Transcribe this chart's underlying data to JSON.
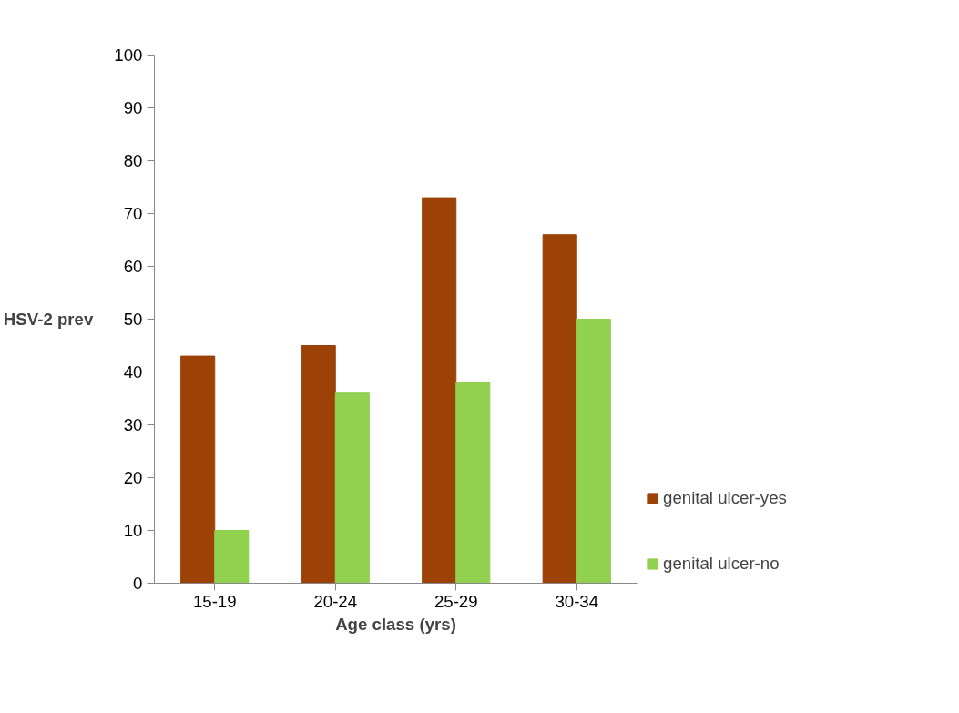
{
  "chart_data": {
    "type": "bar",
    "xlabel": "Age class (yrs)",
    "ylabel": "HSV-2 prev",
    "categories": [
      "15-19",
      "20-24",
      "25-29",
      "30-34"
    ],
    "series": [
      {
        "name": "genital ulcer-yes",
        "color": "#9c4206",
        "values": [
          43,
          45,
          73,
          66
        ]
      },
      {
        "name": "genital ulcer-no",
        "color": "#92d050",
        "values": [
          10,
          36,
          38,
          50
        ]
      }
    ],
    "ylim": [
      0,
      100
    ],
    "yticks": [
      0,
      10,
      20,
      30,
      40,
      50,
      60,
      70,
      80,
      90,
      100
    ],
    "grid": false,
    "legend": "bottom right"
  }
}
